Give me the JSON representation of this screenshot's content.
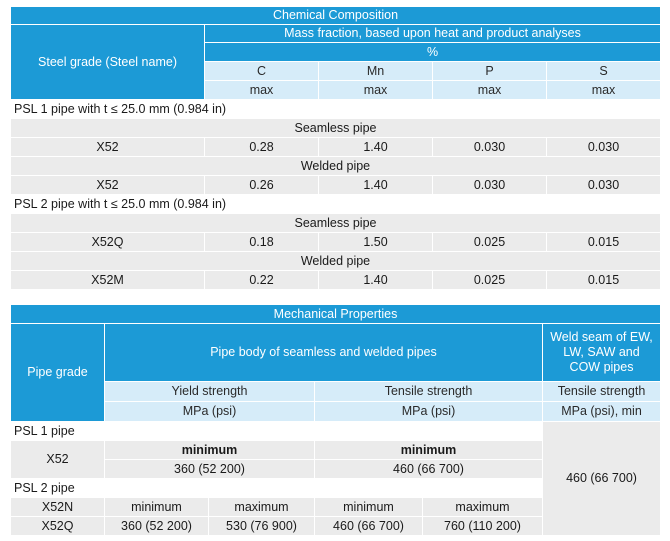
{
  "chem": {
    "title": "Chemical Composition",
    "grade_header": "Steel grade (Steel name)",
    "mass_header": "Mass fraction, based upon heat and product analyses",
    "unit": "%",
    "elements": [
      "C",
      "Mn",
      "P",
      "S"
    ],
    "limit": "max",
    "psl1_label": "PSL 1 pipe with t ≤ 25.0 mm (0.984 in)",
    "psl2_label": "PSL 2 pipe with t ≤ 25.0 mm (0.984 in)",
    "seamless_label": "Seamless pipe",
    "welded_label": "Welded pipe",
    "rows": {
      "psl1_seamless": {
        "grade": "X52",
        "c": "0.28",
        "mn": "1.40",
        "p": "0.030",
        "s": "0.030"
      },
      "psl1_welded": {
        "grade": "X52",
        "c": "0.26",
        "mn": "1.40",
        "p": "0.030",
        "s": "0.030"
      },
      "psl2_seamless": {
        "grade": "X52Q",
        "c": "0.18",
        "mn": "1.50",
        "p": "0.025",
        "s": "0.015"
      },
      "psl2_welded": {
        "grade": "X52M",
        "c": "0.22",
        "mn": "1.40",
        "p": "0.025",
        "s": "0.015"
      }
    }
  },
  "mech": {
    "title": "Mechanical Properties",
    "pipe_grade_header": "Pipe grade",
    "body_header": "Pipe body of seamless and welded pipes",
    "weld_header": "Weld seam of EW, LW, SAW and COW pipes",
    "yield_header": "Yield strength",
    "tensile_header": "Tensile strength",
    "weld_tensile_header": "Tensile strength",
    "unit_mpa": "MPa (psi)",
    "unit_weld": "MPa (psi), min",
    "psl1_label": "PSL 1 pipe",
    "psl2_label": "PSL 2 pipe",
    "minimum": "minimum",
    "maximum": "maximum",
    "psl1": {
      "grade": "X52",
      "yield_min": "360 (52 200)",
      "tensile_min": "460 (66 700)"
    },
    "psl2": {
      "grade_a": "X52N",
      "grade_b": "X52Q",
      "yield_min": "360 (52 200)",
      "yield_max": "530 (76 900)",
      "tensile_min": "460 (66 700)",
      "tensile_max": "760 (110 200)"
    },
    "weld_value": "460 (66 700)"
  }
}
